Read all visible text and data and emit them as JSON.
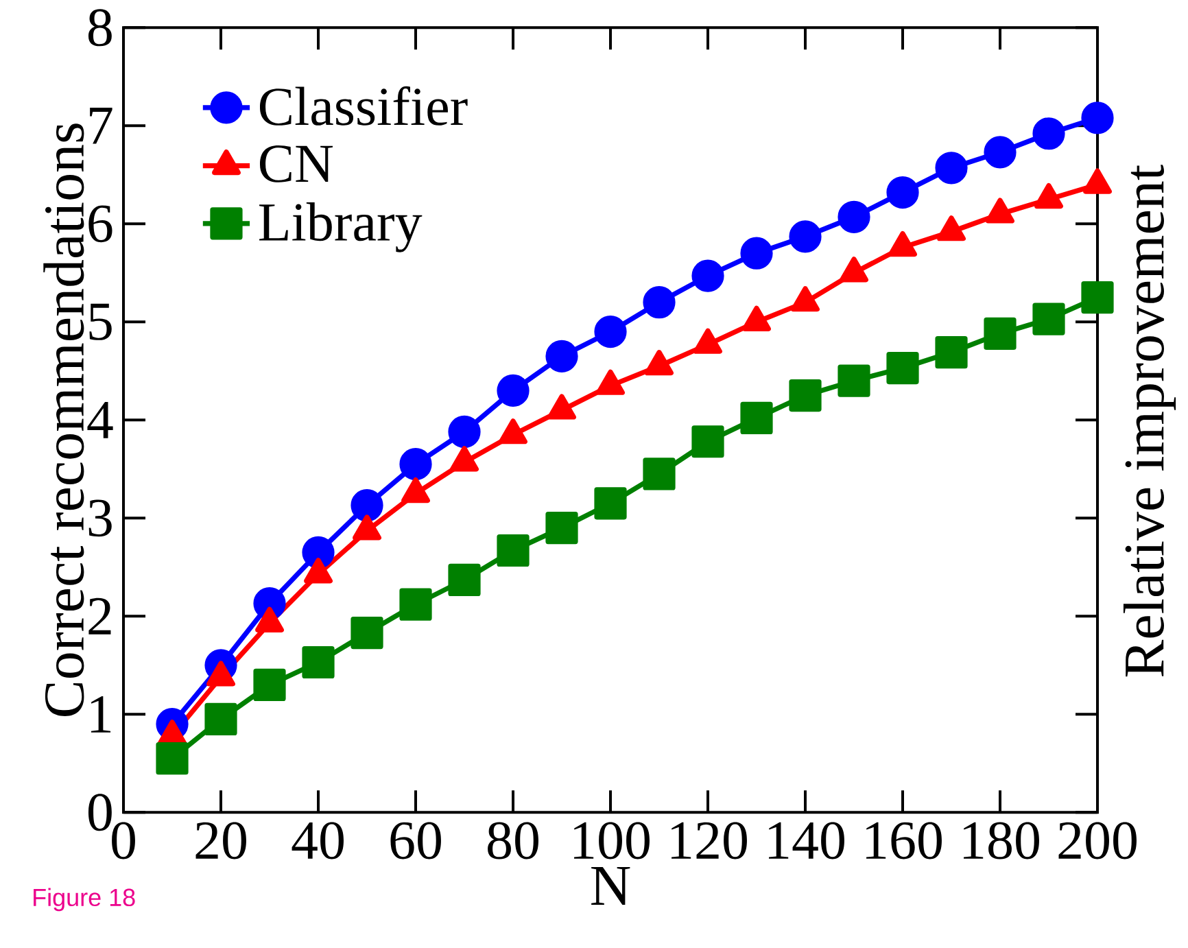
{
  "chart_data": {
    "type": "line",
    "xlabel": "N",
    "ylabel": "Correct recommendations",
    "y2label": "Relative improvement",
    "x": [
      10,
      20,
      30,
      40,
      50,
      60,
      70,
      80,
      90,
      100,
      110,
      120,
      130,
      140,
      150,
      160,
      170,
      180,
      190,
      200
    ],
    "series": [
      {
        "name": "Classifier",
        "color": "#0000ff",
        "marker": "circle",
        "values": [
          0.9,
          1.5,
          2.13,
          2.65,
          3.13,
          3.55,
          3.88,
          4.3,
          4.65,
          4.9,
          5.2,
          5.47,
          5.7,
          5.87,
          6.07,
          6.32,
          6.57,
          6.73,
          6.92,
          7.08
        ]
      },
      {
        "name": "CN",
        "color": "#ff0000",
        "marker": "triangle",
        "values": [
          0.78,
          1.38,
          1.93,
          2.43,
          2.87,
          3.25,
          3.57,
          3.85,
          4.1,
          4.35,
          4.55,
          4.77,
          5.0,
          5.2,
          5.5,
          5.76,
          5.92,
          6.1,
          6.25,
          6.4
        ]
      },
      {
        "name": "Library",
        "color": "#008000",
        "marker": "square",
        "values": [
          0.55,
          0.95,
          1.3,
          1.53,
          1.83,
          2.12,
          2.37,
          2.67,
          2.9,
          3.15,
          3.45,
          3.78,
          4.02,
          4.25,
          4.4,
          4.53,
          4.69,
          4.88,
          5.03,
          5.25
        ]
      }
    ],
    "xlim": [
      0,
      200
    ],
    "xticks": [
      0,
      20,
      40,
      60,
      80,
      100,
      120,
      140,
      160,
      180,
      200
    ],
    "ylim": [
      0,
      8
    ],
    "yticks": [
      0,
      1,
      2,
      3,
      4,
      5,
      6,
      7,
      8
    ],
    "legend": "top left",
    "grid": false,
    "annotations": [
      "Figure 18"
    ]
  }
}
